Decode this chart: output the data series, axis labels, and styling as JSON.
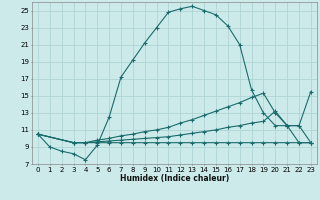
{
  "xlabel": "Humidex (Indice chaleur)",
  "bg_color": "#cceaea",
  "grid_color": "#b0d4d4",
  "line_color": "#1a6b6b",
  "xlim": [
    -0.5,
    23.5
  ],
  "ylim": [
    7,
    26
  ],
  "yticks": [
    7,
    9,
    11,
    13,
    15,
    17,
    19,
    21,
    23,
    25
  ],
  "xticks": [
    0,
    1,
    2,
    3,
    4,
    5,
    6,
    7,
    8,
    9,
    10,
    11,
    12,
    13,
    14,
    15,
    16,
    17,
    18,
    19,
    20,
    21,
    22,
    23
  ],
  "line1_x": [
    0,
    1,
    2,
    3,
    4,
    5,
    6,
    7,
    8,
    9,
    10,
    11,
    12,
    13,
    14,
    15,
    16,
    17,
    18,
    19,
    20,
    21,
    22,
    23
  ],
  "line1_y": [
    10.5,
    9.0,
    8.5,
    8.2,
    7.5,
    9.2,
    12.5,
    17.2,
    19.2,
    21.2,
    23.0,
    24.8,
    25.2,
    25.5,
    25.0,
    24.5,
    23.2,
    21.0,
    15.7,
    13.0,
    11.5,
    11.5,
    9.5,
    9.5
  ],
  "line2_x": [
    0,
    3,
    4,
    5,
    6,
    7,
    8,
    9,
    10,
    11,
    12,
    13,
    14,
    15,
    16,
    17,
    18,
    19,
    20,
    21,
    22,
    23
  ],
  "line2_y": [
    10.5,
    9.5,
    9.5,
    9.8,
    10.0,
    10.3,
    10.5,
    10.8,
    11.0,
    11.3,
    11.8,
    12.2,
    12.7,
    13.2,
    13.7,
    14.2,
    14.8,
    15.3,
    13.0,
    11.5,
    11.5,
    15.5
  ],
  "line3_x": [
    0,
    3,
    4,
    5,
    6,
    7,
    8,
    9,
    10,
    11,
    12,
    13,
    14,
    15,
    16,
    17,
    18,
    19,
    20,
    21,
    22,
    23
  ],
  "line3_y": [
    10.5,
    9.5,
    9.5,
    9.6,
    9.7,
    9.8,
    9.9,
    10.0,
    10.1,
    10.2,
    10.4,
    10.6,
    10.8,
    11.0,
    11.3,
    11.5,
    11.8,
    12.0,
    13.2,
    11.5,
    11.5,
    9.5
  ],
  "line4_x": [
    0,
    3,
    4,
    5,
    6,
    7,
    8,
    9,
    10,
    11,
    12,
    13,
    14,
    15,
    16,
    17,
    18,
    19,
    20,
    21,
    22,
    23
  ],
  "line4_y": [
    10.5,
    9.5,
    9.5,
    9.5,
    9.5,
    9.5,
    9.5,
    9.5,
    9.5,
    9.5,
    9.5,
    9.5,
    9.5,
    9.5,
    9.5,
    9.5,
    9.5,
    9.5,
    9.5,
    9.5,
    9.5,
    9.5
  ]
}
